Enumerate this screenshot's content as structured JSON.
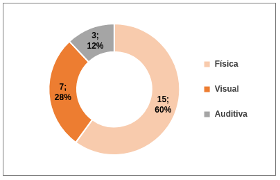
{
  "chart_data": {
    "type": "doughnut",
    "categories": [
      "Física",
      "Visual",
      "Auditiva"
    ],
    "values": [
      15,
      7,
      3
    ],
    "value_labels": [
      [
        "15;",
        "60%"
      ],
      [
        "7;",
        "28%"
      ],
      [
        "3;",
        "12%"
      ]
    ],
    "colors": [
      "#f8cbad",
      "#ed7d31",
      "#a5a5a5"
    ],
    "data_labels": true,
    "legend": "right"
  }
}
